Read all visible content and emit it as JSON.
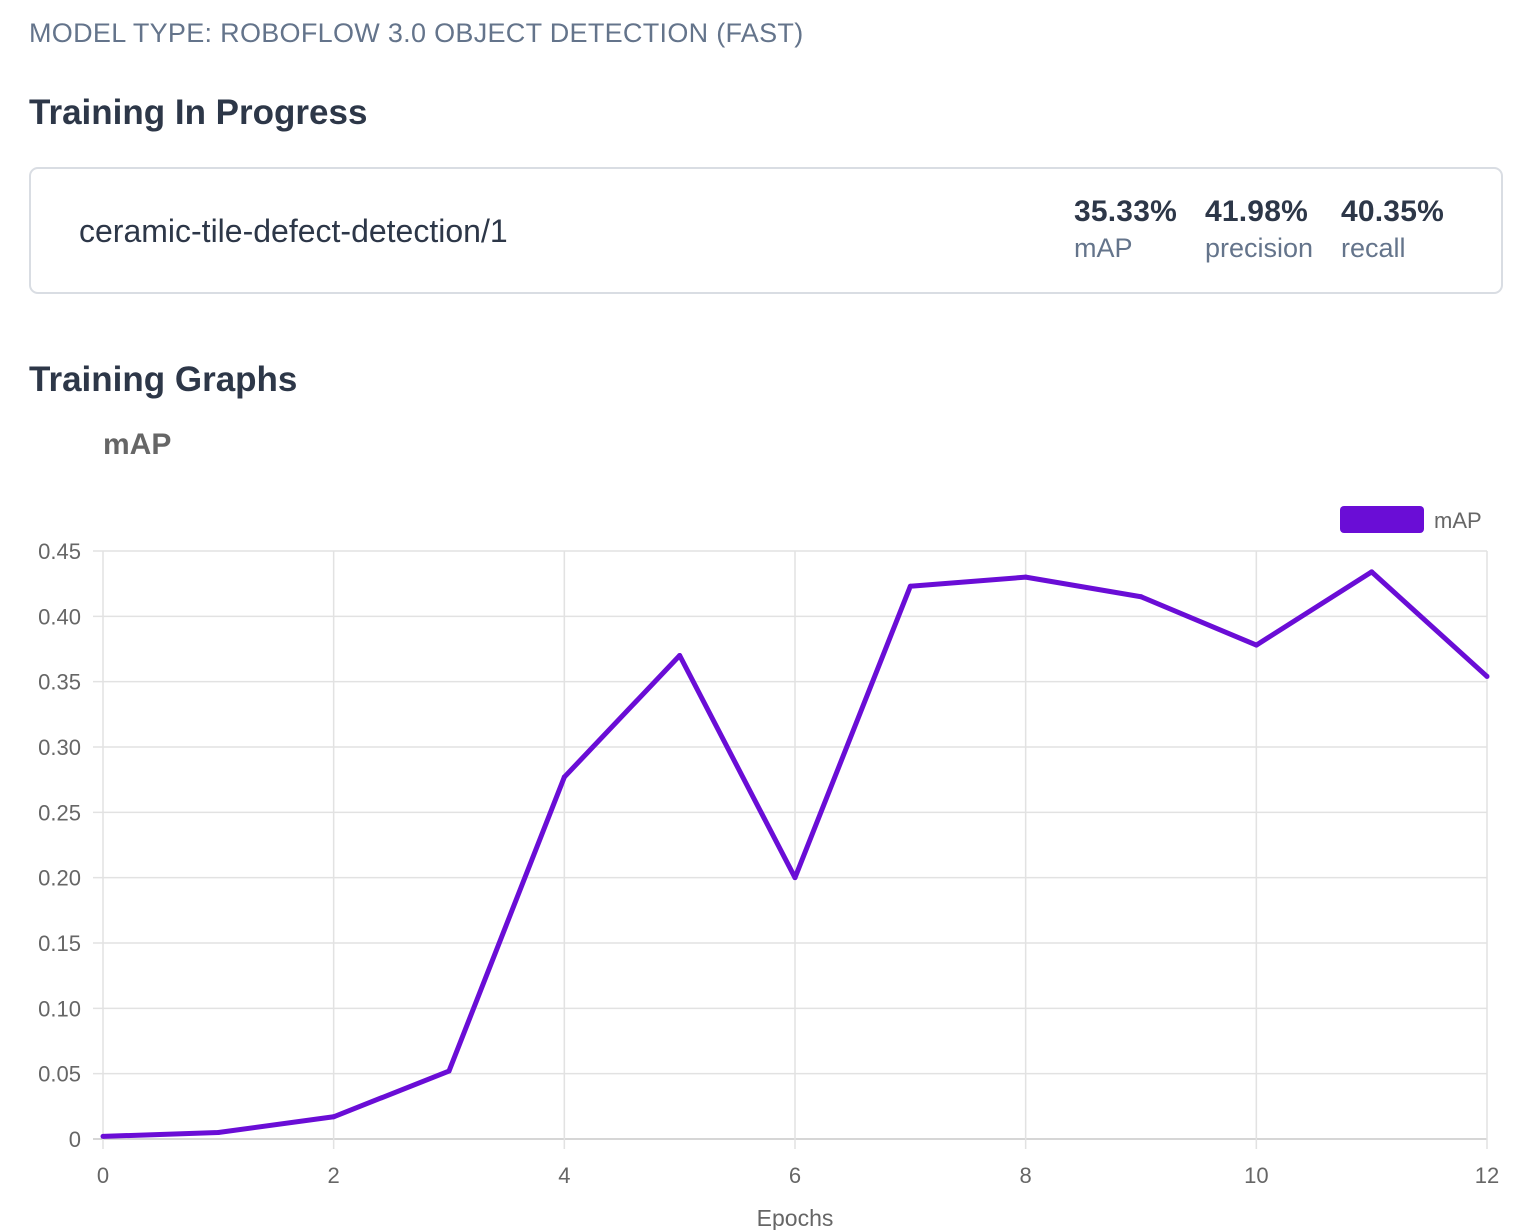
{
  "header": {
    "model_type": "MODEL TYPE: ROBOFLOW 3.0 OBJECT DETECTION (FAST)",
    "progress_title": "Training In Progress",
    "graphs_title": "Training Graphs"
  },
  "model": {
    "name": "ceramic-tile-defect-detection/1",
    "metrics": [
      {
        "value": "35.33%",
        "label": "mAP"
      },
      {
        "value": "41.98%",
        "label": "precision"
      },
      {
        "value": "40.35%",
        "label": "recall"
      }
    ]
  },
  "chart_data": {
    "type": "line",
    "title": "mAP",
    "xlabel": "Epochs",
    "ylabel": "",
    "x": [
      0,
      1,
      2,
      3,
      4,
      5,
      6,
      7,
      8,
      9,
      10,
      11,
      12
    ],
    "series": [
      {
        "name": "mAP",
        "color": "#6a0dd6",
        "values": [
          0.002,
          0.005,
          0.017,
          0.052,
          0.277,
          0.37,
          0.2,
          0.423,
          0.43,
          0.415,
          0.378,
          0.434,
          0.354
        ]
      }
    ],
    "xlim": [
      0,
      12
    ],
    "ylim": [
      0,
      0.45
    ],
    "x_ticks": [
      "0",
      "2",
      "4",
      "6",
      "8",
      "10",
      "12"
    ],
    "y_ticks": [
      "0",
      "0.05",
      "0.10",
      "0.15",
      "0.20",
      "0.25",
      "0.30",
      "0.35",
      "0.40",
      "0.45"
    ],
    "grid": true,
    "legend": "top-right"
  }
}
